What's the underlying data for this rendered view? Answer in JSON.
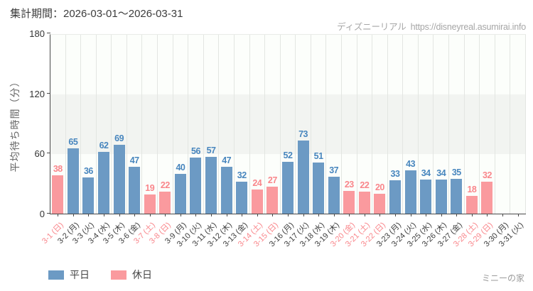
{
  "header": {
    "period_label": "集計期間：2026-03-01～2026-03-31",
    "site_name": "ディズニーリアル",
    "site_url": "https://disneyreal.asumirai.info"
  },
  "chart_data": {
    "type": "bar",
    "title": "",
    "xlabel": "",
    "ylabel": "平均待ち時間（分）",
    "ylim": [
      0,
      180
    ],
    "yticks": [
      0,
      60,
      120,
      180
    ],
    "grid": "horizontal-stripes",
    "legend_position": "bottom-left",
    "series_colors": {
      "weekday": "#6c9ac4",
      "holiday": "#fa9a9e"
    },
    "points": [
      {
        "label": "3-1 (日)",
        "value": 38,
        "type": "holiday"
      },
      {
        "label": "3-2 (月)",
        "value": 65,
        "type": "weekday"
      },
      {
        "label": "3-3 (火)",
        "value": 36,
        "type": "weekday"
      },
      {
        "label": "3-4 (水)",
        "value": 62,
        "type": "weekday"
      },
      {
        "label": "3-5 (木)",
        "value": 69,
        "type": "weekday"
      },
      {
        "label": "3-6 (金)",
        "value": 47,
        "type": "weekday"
      },
      {
        "label": "3-7 (土)",
        "value": 19,
        "type": "holiday"
      },
      {
        "label": "3-8 (日)",
        "value": 22,
        "type": "holiday"
      },
      {
        "label": "3-9 (月)",
        "value": 40,
        "type": "weekday"
      },
      {
        "label": "3-10 (火)",
        "value": 56,
        "type": "weekday"
      },
      {
        "label": "3-11 (水)",
        "value": 57,
        "type": "weekday"
      },
      {
        "label": "3-12 (木)",
        "value": 47,
        "type": "weekday"
      },
      {
        "label": "3-13 (金)",
        "value": 32,
        "type": "weekday"
      },
      {
        "label": "3-14 (土)",
        "value": 24,
        "type": "holiday"
      },
      {
        "label": "3-15 (日)",
        "value": 27,
        "type": "holiday"
      },
      {
        "label": "3-16 (月)",
        "value": 52,
        "type": "weekday"
      },
      {
        "label": "3-17 (火)",
        "value": 73,
        "type": "weekday"
      },
      {
        "label": "3-18 (水)",
        "value": 51,
        "type": "weekday"
      },
      {
        "label": "3-19 (木)",
        "value": 37,
        "type": "weekday"
      },
      {
        "label": "3-20 (金)",
        "value": 23,
        "type": "holiday"
      },
      {
        "label": "3-21 (土)",
        "value": 22,
        "type": "holiday"
      },
      {
        "label": "3-22 (日)",
        "value": 20,
        "type": "holiday"
      },
      {
        "label": "3-23 (月)",
        "value": 33,
        "type": "weekday"
      },
      {
        "label": "3-24 (火)",
        "value": 43,
        "type": "weekday"
      },
      {
        "label": "3-25 (水)",
        "value": 34,
        "type": "weekday"
      },
      {
        "label": "3-26 (木)",
        "value": 34,
        "type": "weekday"
      },
      {
        "label": "3-27 (金)",
        "value": 35,
        "type": "weekday"
      },
      {
        "label": "3-28 (土)",
        "value": 18,
        "type": "holiday"
      },
      {
        "label": "3-29 (日)",
        "value": 32,
        "type": "holiday"
      },
      {
        "label": "3-30 (月)",
        "value": null,
        "type": "weekday"
      },
      {
        "label": "3-31 (火)",
        "value": null,
        "type": "weekday"
      }
    ]
  },
  "legend": [
    {
      "label": "平日",
      "color": "#6c9ac4",
      "key": "weekday"
    },
    {
      "label": "休日",
      "color": "#fa9a9e",
      "key": "holiday"
    }
  ],
  "footer": {
    "attraction": "ミニーの家"
  }
}
